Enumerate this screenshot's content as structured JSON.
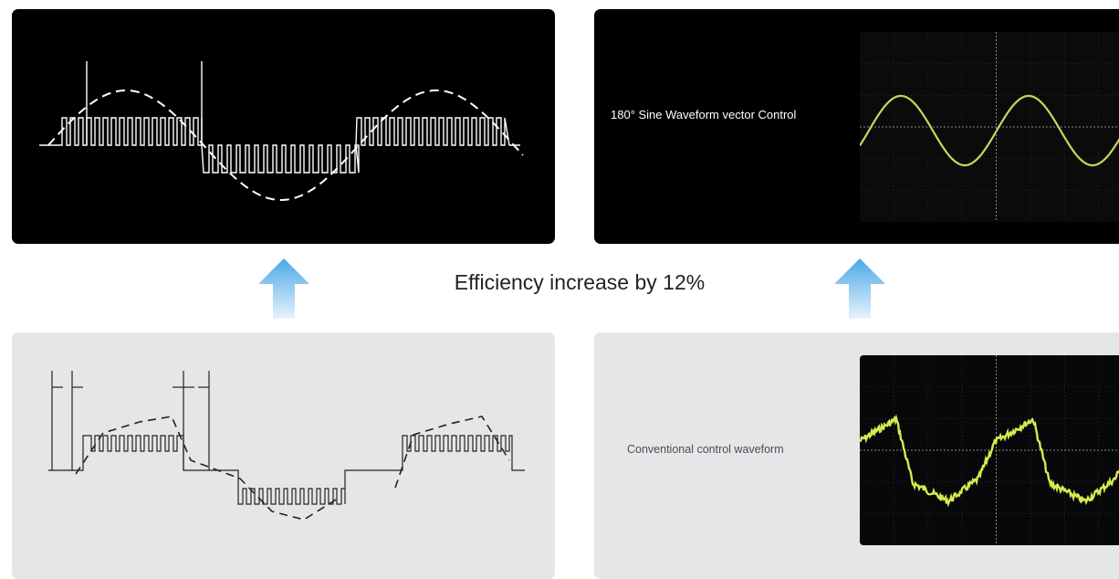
{
  "headline": "Efficiency increase by 12%",
  "panels": {
    "top_left": {
      "kind": "pwm-sine-diagram",
      "background": "#000000"
    },
    "top_right": {
      "caption": "180° Sine Waveform vector Control",
      "background": "#000000",
      "trace_color": "#c9d65a"
    },
    "bottom_left": {
      "kind": "square-wave-diagram",
      "background": "#e5e6e8"
    },
    "bottom_right": {
      "caption": "Conventional control waveform",
      "background": "#e5e6e8",
      "trace_color": "#d9e94f"
    }
  },
  "arrow_colors": {
    "top": "#4aa8e6",
    "bottom": "#e8f3fb"
  },
  "icons": {
    "arrows": "up-arrow-icon"
  }
}
